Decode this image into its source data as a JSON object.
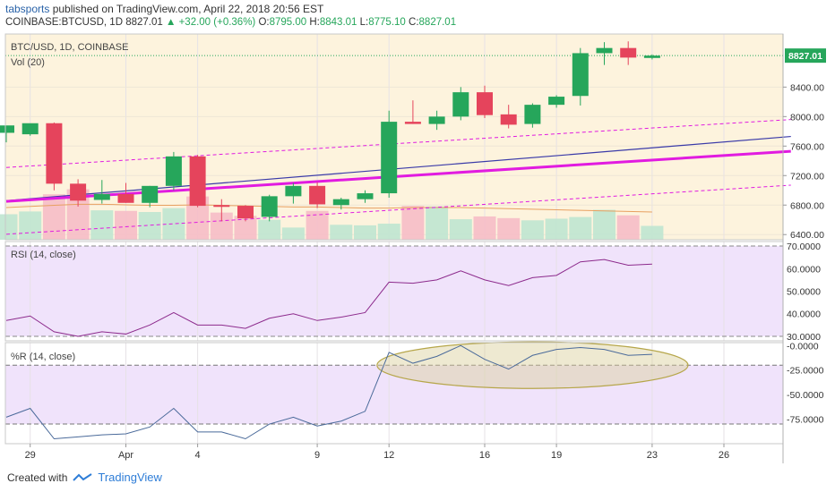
{
  "header": {
    "author": "tabsports",
    "published": "published on TradingView.com, April 22, 2018 20:56 EST",
    "symbol": "COINBASE:BTCUSD, 1D",
    "last": "8827.01",
    "change": "+32.00 (+0.36%)",
    "o_label": "O:",
    "o": "8795.00",
    "h_label": "H:",
    "h": "8843.01",
    "l_label": "L:",
    "l": "8775.10",
    "c_label": "C:",
    "c": "8827.01"
  },
  "colors": {
    "up": "#26a65b",
    "down": "#e5445c",
    "main_bg": "#fdf3dd",
    "osc_bg": "#f0e3fb",
    "ma_blue": "#3a3aa8",
    "ma_magenta": "#e11be0",
    "vol_ma": "#e8a060",
    "rsi_line": "#8c2a8c",
    "wr_line": "#4a6a9a",
    "last_badge": "#26a65b"
  },
  "footer": {
    "created_with": "Created with",
    "brand": "TradingView"
  },
  "chart_data": {
    "type": "candlestick",
    "title": "BTC/USD, 1D, COINBASE",
    "subtitle": "Vol (20)",
    "last_price_label": "8827.01",
    "ylim": [
      6330,
      9120
    ],
    "price_ticks": [
      "8400.00",
      "8000.00",
      "7600.00",
      "7200.00",
      "6800.00",
      "6400.00"
    ],
    "x_tick_labels": [
      {
        "label": "29",
        "i": 1
      },
      {
        "label": "Apr",
        "i": 5
      },
      {
        "label": "4",
        "i": 8
      },
      {
        "label": "9",
        "i": 13
      },
      {
        "label": "12",
        "i": 16
      },
      {
        "label": "16",
        "i": 20
      },
      {
        "label": "19",
        "i": 23
      },
      {
        "label": "23",
        "i": 27
      },
      {
        "label": "26",
        "i": 30
      }
    ],
    "candles": [
      {
        "o": 7780,
        "h": 7860,
        "l": 7650,
        "c": 7880
      },
      {
        "o": 7760,
        "h": 7900,
        "l": 7740,
        "c": 7910
      },
      {
        "o": 7910,
        "h": 7920,
        "l": 7000,
        "c": 7090
      },
      {
        "o": 7090,
        "h": 7150,
        "l": 6780,
        "c": 6860
      },
      {
        "o": 6870,
        "h": 7140,
        "l": 6820,
        "c": 6950
      },
      {
        "o": 6950,
        "h": 7100,
        "l": 6830,
        "c": 6830
      },
      {
        "o": 6830,
        "h": 7060,
        "l": 6770,
        "c": 7060
      },
      {
        "o": 7060,
        "h": 7520,
        "l": 7000,
        "c": 7460
      },
      {
        "o": 7460,
        "h": 7480,
        "l": 6770,
        "c": 6790
      },
      {
        "o": 6800,
        "h": 6880,
        "l": 6580,
        "c": 6790
      },
      {
        "o": 6790,
        "h": 6800,
        "l": 6580,
        "c": 6620
      },
      {
        "o": 6640,
        "h": 6940,
        "l": 6580,
        "c": 6920
      },
      {
        "o": 6920,
        "h": 7100,
        "l": 6820,
        "c": 7060
      },
      {
        "o": 7060,
        "h": 7110,
        "l": 6760,
        "c": 6810
      },
      {
        "o": 6800,
        "h": 6900,
        "l": 6740,
        "c": 6880
      },
      {
        "o": 6880,
        "h": 7000,
        "l": 6830,
        "c": 6960
      },
      {
        "o": 6960,
        "h": 8080,
        "l": 6900,
        "c": 7930
      },
      {
        "o": 7930,
        "h": 8220,
        "l": 7900,
        "c": 7900
      },
      {
        "o": 7900,
        "h": 8080,
        "l": 7820,
        "c": 8000
      },
      {
        "o": 8000,
        "h": 8400,
        "l": 7950,
        "c": 8330
      },
      {
        "o": 8330,
        "h": 8420,
        "l": 7980,
        "c": 8020
      },
      {
        "o": 8030,
        "h": 8160,
        "l": 7840,
        "c": 7890
      },
      {
        "o": 7900,
        "h": 8180,
        "l": 7850,
        "c": 8160
      },
      {
        "o": 8160,
        "h": 8290,
        "l": 8120,
        "c": 8270
      },
      {
        "o": 8280,
        "h": 8930,
        "l": 8150,
        "c": 8860
      },
      {
        "o": 8860,
        "h": 9010,
        "l": 8700,
        "c": 8930
      },
      {
        "o": 8930,
        "h": 9020,
        "l": 8700,
        "c": 8800
      },
      {
        "o": 8795,
        "h": 8843.01,
        "l": 8775.1,
        "c": 8827.01
      }
    ],
    "volume": [
      0.46,
      0.51,
      0.82,
      0.91,
      0.53,
      0.52,
      0.5,
      0.57,
      0.78,
      0.49,
      0.43,
      0.36,
      0.22,
      0.52,
      0.27,
      0.26,
      0.29,
      0.61,
      0.6,
      0.37,
      0.42,
      0.39,
      0.35,
      0.38,
      0.41,
      0.54,
      0.44,
      0.25
    ],
    "volume_ma": [
      0.58,
      0.6,
      0.62,
      0.64,
      0.64,
      0.63,
      0.62,
      0.62,
      0.63,
      0.62,
      0.61,
      0.6,
      0.59,
      0.59,
      0.58,
      0.57,
      0.57,
      0.58,
      0.58,
      0.58,
      0.57,
      0.56,
      0.55,
      0.54,
      0.53,
      0.52,
      0.51,
      0.5
    ],
    "trend_lines": [
      {
        "name": "ma_blue",
        "from": [
          0,
          6860
        ],
        "to": [
          32.8,
          7730
        ]
      },
      {
        "name": "ma_magenta",
        "from": [
          0,
          6850
        ],
        "to": [
          32.8,
          7530
        ]
      },
      {
        "name": "upper_dashed",
        "from": [
          0,
          7310
        ],
        "to": [
          32.8,
          7960
        ]
      },
      {
        "name": "lower_dashed",
        "from": [
          0,
          6405
        ],
        "to": [
          32.8,
          7070
        ]
      }
    ],
    "green_dotted_level": 8827.01,
    "rsi": {
      "title": "RSI (14, close)",
      "ylim": [
        28,
        72
      ],
      "ticks": [
        "70.0000",
        "60.0000",
        "50.0000",
        "40.0000",
        "30.0000"
      ],
      "bands": [
        30,
        70
      ],
      "values": [
        37,
        39,
        32,
        30,
        32,
        31,
        35,
        40.5,
        35,
        35,
        33.5,
        38,
        40,
        37,
        38.5,
        40.5,
        54,
        53.5,
        55,
        59,
        55,
        52.5,
        56,
        57,
        63,
        64,
        61.5,
        62
      ]
    },
    "williams_r": {
      "title": "%R (14, close)",
      "ylim": [
        -100,
        3
      ],
      "ticks": [
        "0.0000",
        "-25.0000",
        "-50.0000",
        "-75.0000"
      ],
      "bands": [
        -20,
        -80
      ],
      "values": [
        -73,
        -64,
        -95,
        -93,
        -91,
        -90,
        -83,
        -64,
        -88,
        -88,
        -95,
        -80,
        -73,
        -82,
        -77,
        -67,
        -7,
        -18,
        -11,
        0,
        -14,
        -24,
        -10,
        -4,
        -2,
        -4,
        -10,
        -9
      ]
    },
    "annotation": {
      "type": "ellipse",
      "from_i": 15.5,
      "to_i": 28.5,
      "center_val": -20
    }
  }
}
